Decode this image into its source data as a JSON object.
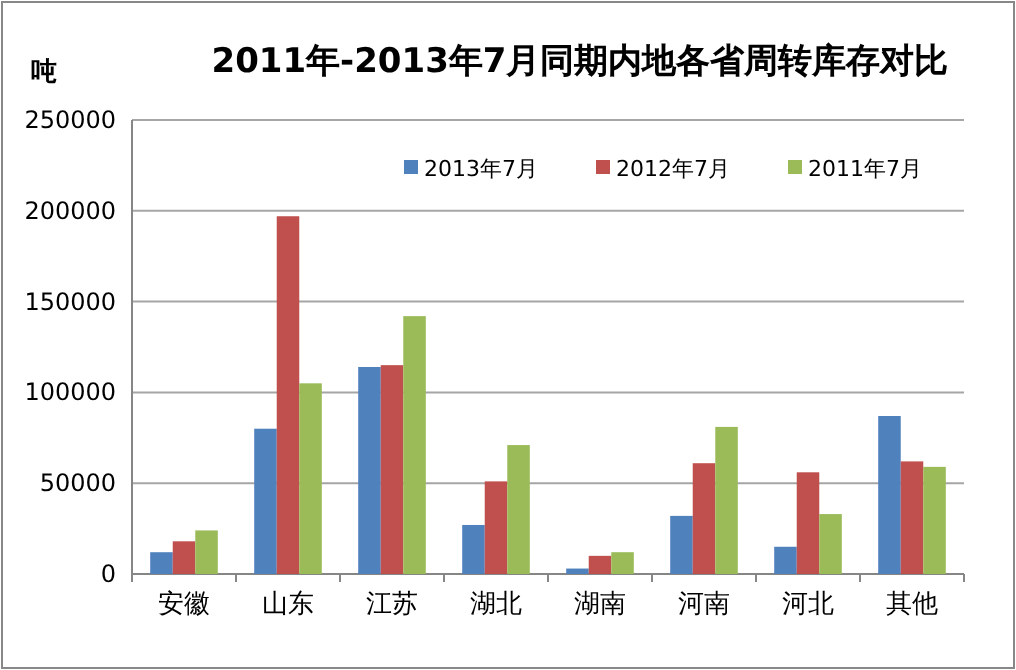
{
  "chart_data": {
    "type": "bar",
    "title": "2011年-2013年7月同期内地各省周转库存对比",
    "ylabel": "吨",
    "categories": [
      "安徽",
      "山东",
      "江苏",
      "湖北",
      "湖南",
      "河南",
      "河北",
      "其他"
    ],
    "series": [
      {
        "name": "2013年7月",
        "color": "#4f81bd",
        "values": [
          12000,
          80000,
          114000,
          27000,
          3000,
          32000,
          15000,
          87000
        ]
      },
      {
        "name": "2012年7月",
        "color": "#c0504d",
        "values": [
          18000,
          197000,
          115000,
          51000,
          10000,
          61000,
          56000,
          62000
        ]
      },
      {
        "name": "2011年7月",
        "color": "#9bbb59",
        "values": [
          24000,
          105000,
          142000,
          71000,
          12000,
          81000,
          33000,
          59000
        ]
      }
    ],
    "ylim": [
      0,
      250000
    ],
    "yticks": [
      0,
      50000,
      100000,
      150000,
      200000,
      250000
    ],
    "grid": "y",
    "legend": "top right"
  }
}
